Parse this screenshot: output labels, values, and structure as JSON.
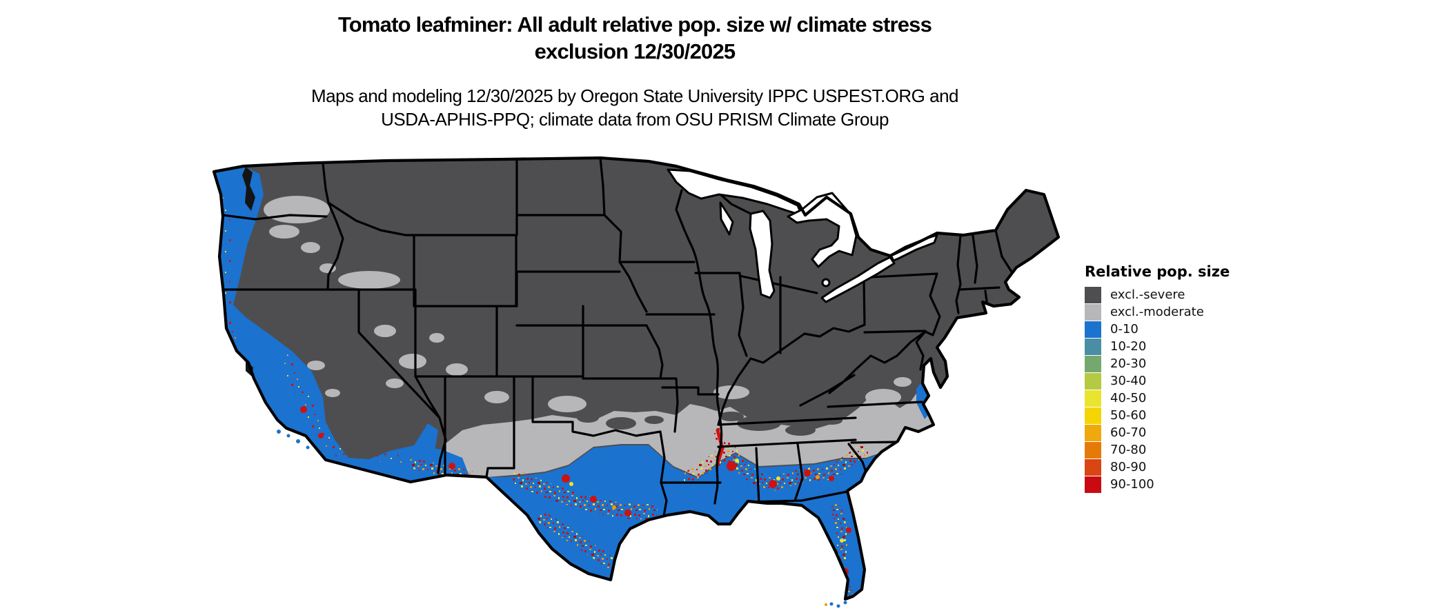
{
  "title": {
    "line1": "Tomato leafminer: All adult relative pop. size w/ climate stress",
    "line2": "exclusion 12/30/2025"
  },
  "subtitle": {
    "line1": "Maps and modeling 12/30/2025 by Oregon State University IPPC USPEST.ORG and",
    "line2": "USDA-APHIS-PPQ; climate data from OSU PRISM Climate Group"
  },
  "legend": {
    "title": "Relative pop. size",
    "items": [
      {
        "label": "excl.-severe",
        "color": "#4e4e50"
      },
      {
        "label": "excl.-moderate",
        "color": "#b7b7b9"
      },
      {
        "label": "0-10",
        "color": "#1b72cf"
      },
      {
        "label": "10-20",
        "color": "#4a8ea6"
      },
      {
        "label": "20-30",
        "color": "#74a86f"
      },
      {
        "label": "30-40",
        "color": "#b5c943"
      },
      {
        "label": "40-50",
        "color": "#e9e42e"
      },
      {
        "label": "50-60",
        "color": "#f4d403"
      },
      {
        "label": "60-70",
        "color": "#f0a90d"
      },
      {
        "label": "70-80",
        "color": "#e67a08"
      },
      {
        "label": "80-90",
        "color": "#d94513"
      },
      {
        "label": "90-100",
        "color": "#c90b11"
      }
    ]
  },
  "map": {
    "region": "Continental United States",
    "colors": {
      "water": "#ffffff",
      "excl_severe": "#4e4e50",
      "excl_moderate": "#b7b7b9",
      "pop_0_10": "#1b72cf",
      "border": "#000000",
      "hot_red": "#cf1110",
      "hot_dark_red": "#b00d0d",
      "hot_orange": "#ef9a0a",
      "hot_yellow": "#f2e32a",
      "inland_water": "#141414"
    }
  }
}
